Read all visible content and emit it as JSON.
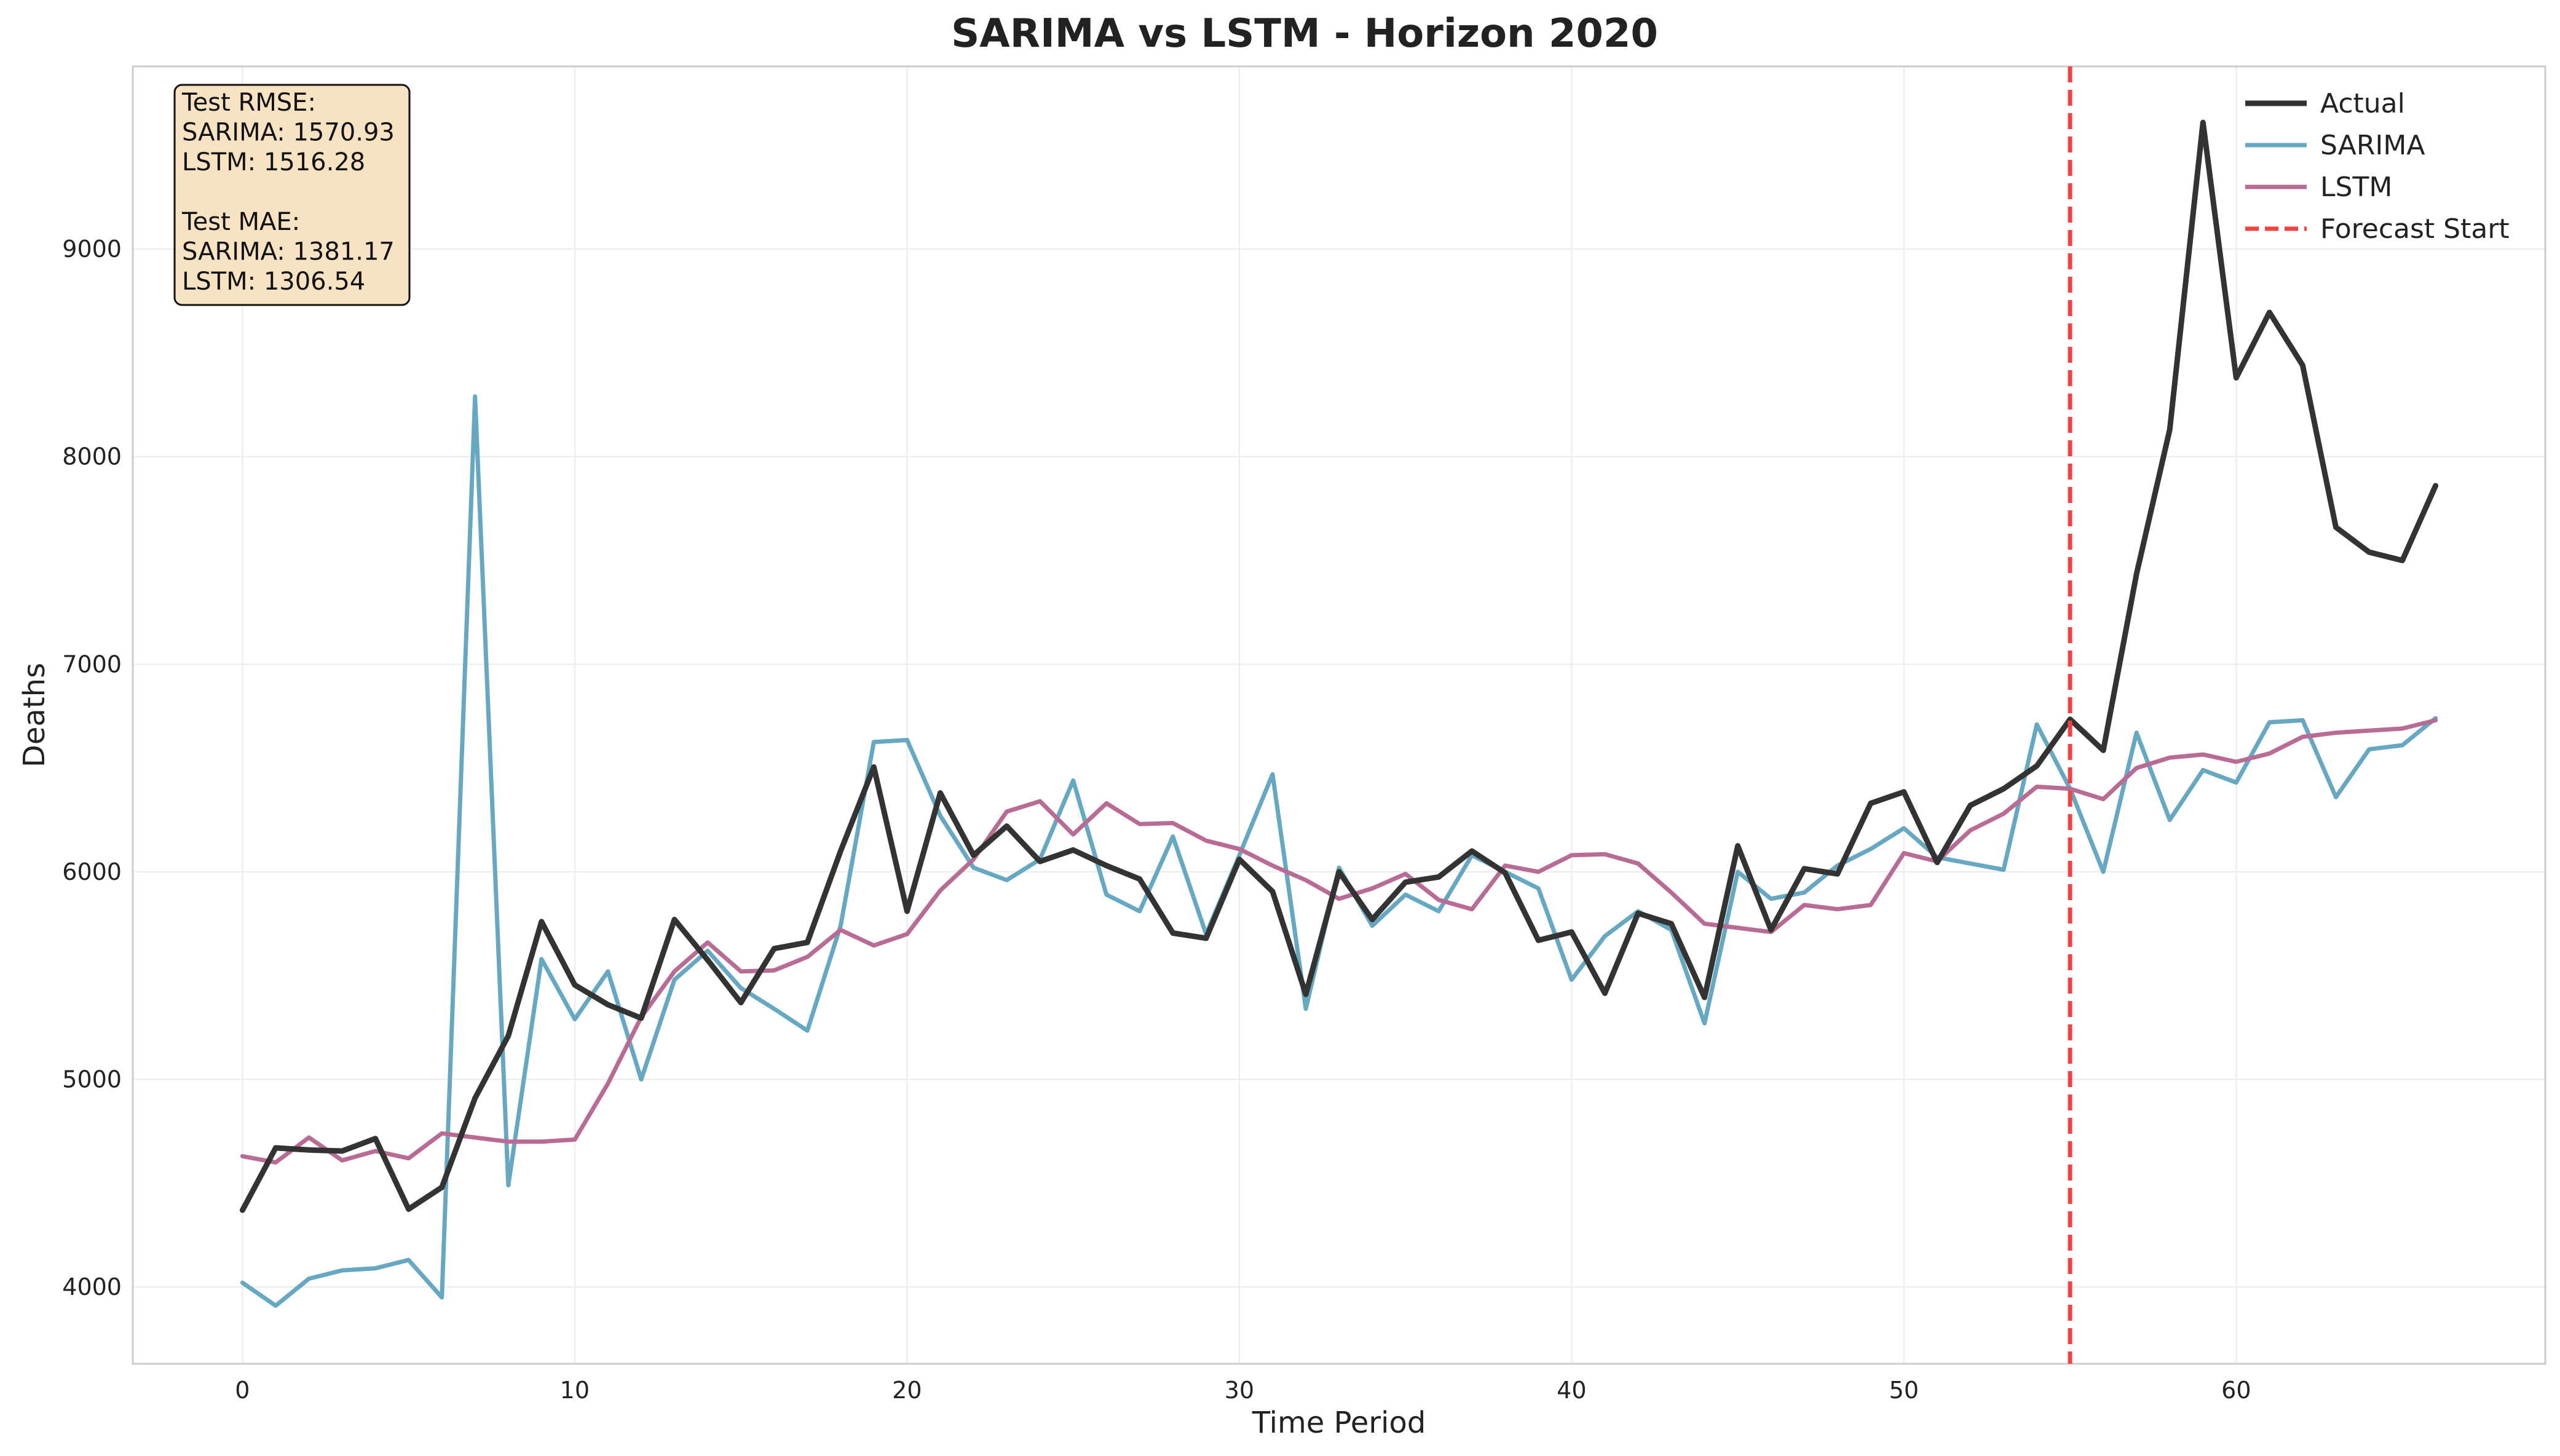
{
  "chart_data": {
    "type": "line",
    "title": "SARIMA vs LSTM - Horizon 2020",
    "xlabel": "Time Period",
    "ylabel": "Deaths",
    "xlim": [
      -3.3,
      69.3
    ],
    "ylim": [
      3630,
      9880
    ],
    "xticks": [
      0,
      10,
      20,
      30,
      40,
      50,
      60
    ],
    "yticks": [
      4000,
      5000,
      6000,
      7000,
      8000,
      9000
    ],
    "grid": true,
    "legend_position": "top-right",
    "x": [
      0,
      1,
      2,
      3,
      4,
      5,
      6,
      7,
      8,
      9,
      10,
      11,
      12,
      13,
      14,
      15,
      16,
      17,
      18,
      19,
      20,
      21,
      22,
      23,
      24,
      25,
      26,
      27,
      28,
      29,
      30,
      31,
      32,
      33,
      34,
      35,
      36,
      37,
      38,
      39,
      40,
      41,
      42,
      43,
      44,
      45,
      46,
      47,
      48,
      49,
      50,
      51,
      52,
      53,
      54,
      55,
      56,
      57,
      58,
      59,
      60,
      61,
      62,
      63,
      64,
      65,
      66
    ],
    "series": [
      {
        "name": "Actual",
        "color": "#333333",
        "line_width": 9,
        "values": [
          4370,
          4670,
          4660,
          4655,
          4715,
          4375,
          4480,
          4910,
          5210,
          5760,
          5455,
          5360,
          5295,
          5770,
          5575,
          5370,
          5630,
          5660,
          6100,
          6505,
          5810,
          6380,
          6080,
          6220,
          6050,
          6105,
          6030,
          5965,
          5705,
          5680,
          6060,
          5905,
          5410,
          6000,
          5770,
          5950,
          5975,
          6100,
          5995,
          5670,
          5710,
          5415,
          5800,
          5750,
          5395,
          6125,
          5720,
          6015,
          5990,
          6330,
          6385,
          6045,
          6320,
          6400,
          6510,
          6735,
          6585,
          7435,
          8130,
          9610,
          8380,
          8695,
          8440,
          7660,
          7540,
          7500,
          7860
        ]
      },
      {
        "name": "SARIMA",
        "color": "#66a8c2",
        "line_width": 7,
        "values": [
          4020,
          3910,
          4040,
          4080,
          4090,
          4130,
          3950,
          8290,
          4490,
          5580,
          5290,
          5520,
          5000,
          5480,
          5620,
          5440,
          5340,
          5235,
          5740,
          6625,
          6635,
          6270,
          6020,
          5960,
          6060,
          6440,
          5890,
          5810,
          6170,
          5700,
          6080,
          6470,
          5340,
          6020,
          5740,
          5890,
          5810,
          6080,
          6000,
          5920,
          5480,
          5690,
          5810,
          5720,
          5270,
          6000,
          5870,
          5900,
          6030,
          6110,
          6210,
          6070,
          6040,
          6010,
          6710,
          6400,
          6000,
          6670,
          6250,
          6490,
          6430,
          6720,
          6730,
          6360,
          6590,
          6610,
          6740
        ]
      },
      {
        "name": "LSTM",
        "color": "#b86b94",
        "line_width": 7,
        "values": [
          4630,
          4600,
          4720,
          4610,
          4655,
          4620,
          4740,
          4720,
          4700,
          4700,
          4710,
          4980,
          5300,
          5520,
          5660,
          5520,
          5525,
          5590,
          5720,
          5645,
          5700,
          5910,
          6060,
          6290,
          6340,
          6180,
          6330,
          6230,
          6235,
          6150,
          6110,
          6030,
          5960,
          5870,
          5920,
          5990,
          5865,
          5820,
          6030,
          6000,
          6080,
          6085,
          6040,
          5900,
          5750,
          5730,
          5710,
          5840,
          5820,
          5840,
          6090,
          6050,
          6200,
          6280,
          6410,
          6400,
          6350,
          6500,
          6550,
          6565,
          6530,
          6570,
          6650,
          6670,
          6680,
          6690,
          6730
        ]
      }
    ],
    "forecast_start": {
      "name": "Forecast Start",
      "x": 55,
      "color": "#ee4444"
    },
    "metrics": {
      "lines": [
        "Test RMSE:",
        "SARIMA: 1570.93",
        "LSTM: 1516.28",
        "",
        "Test MAE:",
        "SARIMA: 1381.17",
        "LSTM: 1306.54"
      ],
      "box_color": "#f7e2c2"
    }
  }
}
